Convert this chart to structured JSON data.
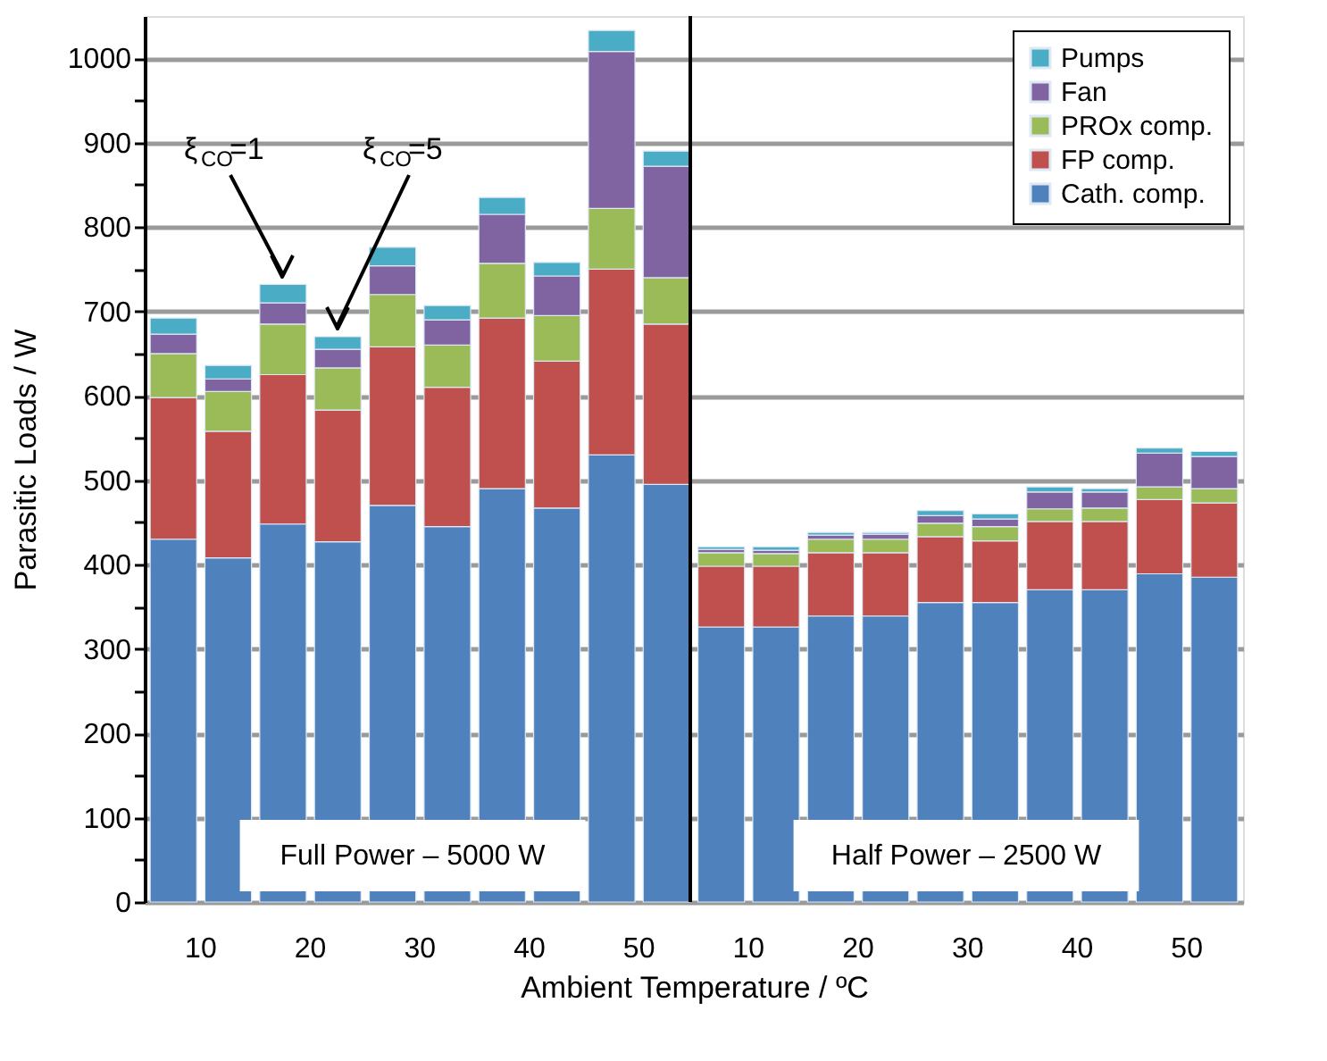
{
  "chart_data": {
    "type": "bar",
    "stacked": true,
    "xlabel": "Ambient Temperature / ºC",
    "ylabel": "Parasitic Loads / W",
    "categories": [
      "10",
      null,
      "20",
      null,
      "30",
      null,
      "40",
      null,
      "50",
      null,
      "10",
      null,
      "20",
      null,
      "30",
      null,
      "40",
      null,
      "50",
      null
    ],
    "series": [
      {
        "name": "Cath. comp.",
        "color": "#4f81bd",
        "values": [
          430,
          408,
          448,
          427,
          470,
          445,
          490,
          467,
          530,
          495,
          326,
          326,
          339,
          339,
          355,
          355,
          370,
          370,
          389,
          385
        ]
      },
      {
        "name": "FP comp.",
        "color": "#c0504d",
        "values": [
          168,
          150,
          177,
          156,
          188,
          165,
          202,
          174,
          220,
          190,
          72,
          72,
          75,
          75,
          78,
          73,
          81,
          81,
          88,
          88
        ]
      },
      {
        "name": "PROx comp.",
        "color": "#9bbb59",
        "values": [
          52,
          47,
          60,
          50,
          62,
          50,
          65,
          54,
          72,
          55,
          16,
          15,
          16,
          16,
          16,
          17,
          15,
          16,
          15,
          17
        ]
      },
      {
        "name": "Fan",
        "color": "#8064a2",
        "values": [
          23,
          15,
          25,
          22,
          34,
          30,
          58,
          47,
          186,
          132,
          4,
          4,
          5,
          6,
          9,
          9,
          20,
          19,
          40,
          38
        ]
      },
      {
        "name": "Pumps",
        "color": "#4bacc6",
        "values": [
          19,
          16,
          22,
          15,
          22,
          17,
          20,
          16,
          25,
          18,
          3,
          4,
          3,
          2,
          6,
          6,
          6,
          4,
          6,
          6
        ]
      }
    ],
    "ylim": [
      0,
      1050
    ],
    "yticks": [
      0,
      {
        "value": 50,
        "label": null
      },
      100,
      {
        "value": 150,
        "label": null
      },
      200,
      {
        "value": 250,
        "label": null
      },
      300,
      {
        "value": 350,
        "label": null
      },
      400,
      {
        "value": 450,
        "label": null
      },
      500,
      {
        "value": 550,
        "label": null
      },
      600,
      {
        "value": 650,
        "label": null
      },
      700,
      {
        "value": 750,
        "label": null
      },
      800,
      {
        "value": 850,
        "label": null
      },
      900,
      {
        "value": 950,
        "label": null
      },
      1000
    ],
    "grid": "y",
    "legend": "top right",
    "annotations": [
      "ξ$_{CO}$=1",
      "ξ$_{CO}$=5",
      "Full Power – 5000 W",
      "Half Power – 2500 W"
    ]
  }
}
